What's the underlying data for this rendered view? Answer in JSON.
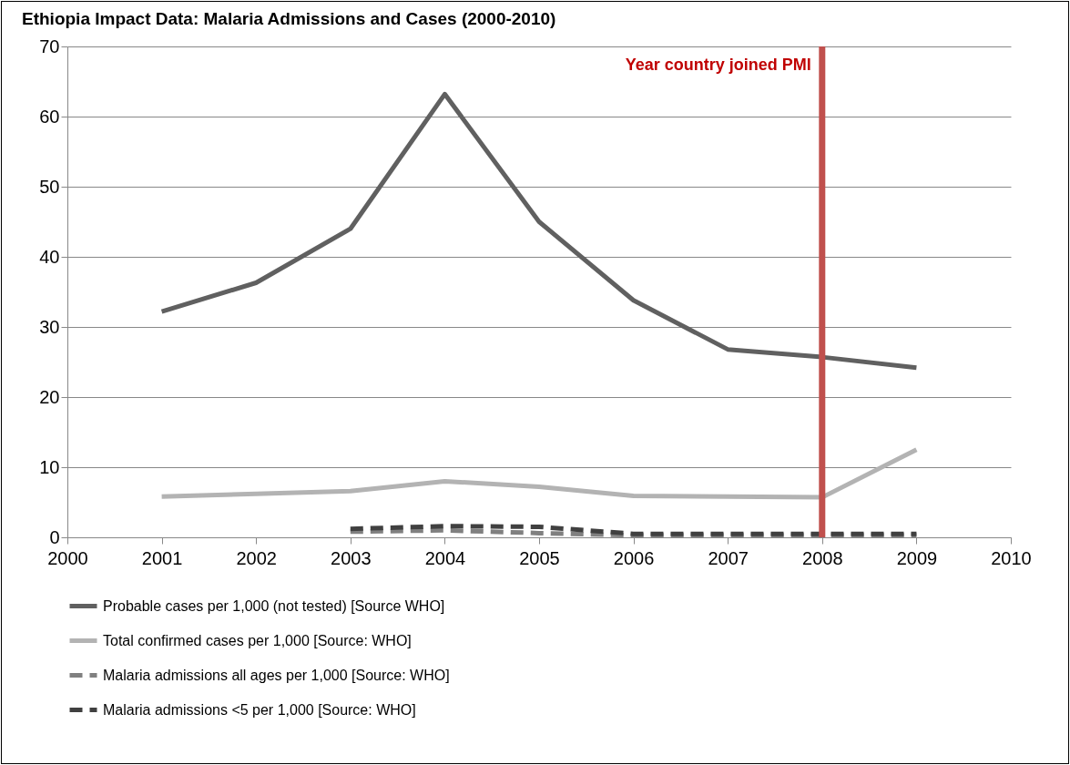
{
  "chart_data": {
    "type": "line",
    "title": "Ethiopia Impact Data: Malaria Admissions and Cases (2000-2010)",
    "x": [
      2001,
      2002,
      2003,
      2004,
      2005,
      2006,
      2007,
      2008,
      2009
    ],
    "series": [
      {
        "name": "Probable cases per 1,000 (not tested) [Source WHO]",
        "color": "#606060",
        "line_style": "solid",
        "values": [
          32.2,
          36.3,
          44,
          63.2,
          45,
          33.8,
          26.8,
          25.7,
          24.2
        ]
      },
      {
        "name": "Total confirmed cases per 1,000 [Source: WHO]",
        "color": "#b3b3b3",
        "line_style": "solid",
        "values": [
          5.8,
          6.2,
          6.6,
          8.0,
          7.2,
          5.9,
          5.8,
          5.7,
          12.5
        ]
      },
      {
        "name": "Malaria admissions all ages per 1,000 [Source: WHO]",
        "color": "#808080",
        "line_style": "dashed",
        "values": [
          null,
          null,
          0.8,
          1.0,
          0.6,
          0.3,
          0.3,
          0.3,
          0.3
        ]
      },
      {
        "name": "Malaria admissions <5 per 1,000 [Source: WHO]",
        "color": "#404040",
        "line_style": "dashed",
        "values": [
          null,
          null,
          1.2,
          1.6,
          1.5,
          0.5,
          0.5,
          0.5,
          0.5
        ]
      }
    ],
    "xlim": [
      2000,
      2010
    ],
    "xticks": [
      2000,
      2001,
      2002,
      2003,
      2004,
      2005,
      2006,
      2007,
      2008,
      2009,
      2010
    ],
    "ylim": [
      0,
      70
    ],
    "yticks": [
      0,
      10,
      20,
      30,
      40,
      50,
      60,
      70
    ],
    "ref_lines": [
      {
        "axis": "x",
        "value": 2008,
        "label": "Year country joined PMI",
        "color": "#c0504d"
      }
    ],
    "grid": "y",
    "legend": "bottom",
    "marker": "none"
  }
}
